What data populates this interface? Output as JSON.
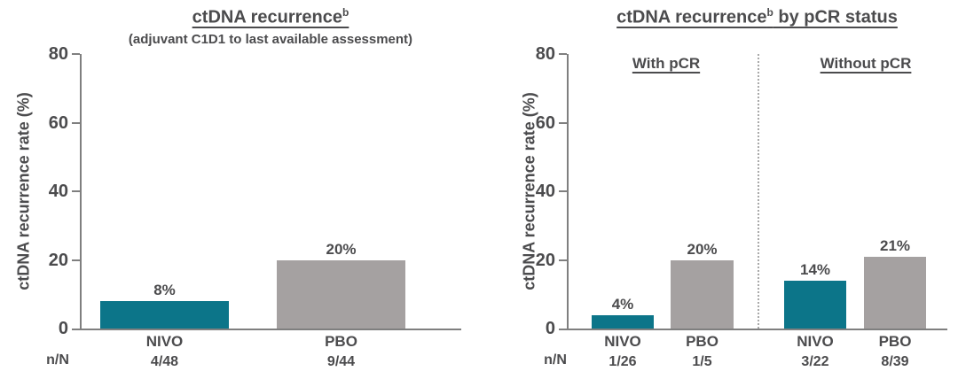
{
  "colors": {
    "nivo_teal": "#0C7589",
    "pbo_gray": "#A5A1A1",
    "text": "#4B4B4D",
    "axis": "#7F7F7F"
  },
  "chart_data": [
    {
      "type": "bar",
      "title": "ctDNA recurrence",
      "title_sup": "b",
      "subtitle": "(adjuvant C1D1 to last available assessment)",
      "ylabel": "ctDNA recurrence rate (%)",
      "ylim": [
        0,
        80
      ],
      "yticks": [
        0,
        20,
        40,
        60,
        80
      ],
      "grid": false,
      "row_header": "n/N",
      "bars": [
        {
          "x_label": "NIVO",
          "value_pct": 8,
          "label": "8%",
          "n_over_N": "4/48",
          "color": "nivo_teal"
        },
        {
          "x_label": "PBO",
          "value_pct": 20,
          "label": "20%",
          "n_over_N": "9/44",
          "color": "pbo_gray"
        }
      ]
    },
    {
      "type": "bar",
      "title": "ctDNA recurrence",
      "title_sup": "b",
      "title_rest": " by pCR status",
      "ylabel": "ctDNA recurrence rate (%)",
      "ylim": [
        0,
        80
      ],
      "yticks": [
        0,
        20,
        40,
        60,
        80
      ],
      "grid": false,
      "row_header": "n/N",
      "groups": [
        {
          "label": "With pCR"
        },
        {
          "label": "Without pCR"
        }
      ],
      "bars": [
        {
          "group": "With pCR",
          "x_label": "NIVO",
          "value_pct": 4,
          "label": "4%",
          "n_over_N": "1/26",
          "color": "nivo_teal"
        },
        {
          "group": "With pCR",
          "x_label": "PBO",
          "value_pct": 20,
          "label": "20%",
          "n_over_N": "1/5",
          "color": "pbo_gray"
        },
        {
          "group": "Without pCR",
          "x_label": "NIVO",
          "value_pct": 14,
          "label": "14%",
          "n_over_N": "3/22",
          "color": "nivo_teal"
        },
        {
          "group": "Without pCR",
          "x_label": "PBO",
          "value_pct": 21,
          "label": "21%",
          "n_over_N": "8/39",
          "color": "pbo_gray"
        }
      ]
    }
  ]
}
